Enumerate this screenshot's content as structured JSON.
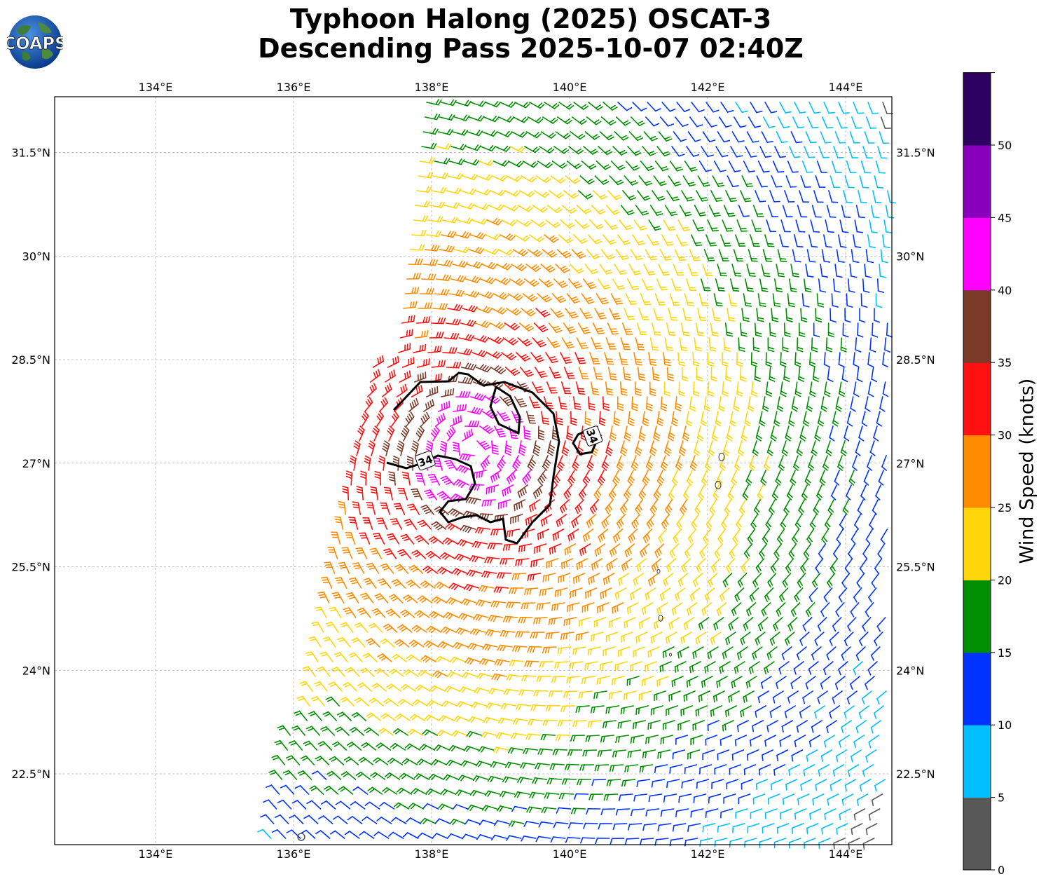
{
  "title_line1": "Typhoon Halong (2025) OSCAT-3",
  "title_line2": "Descending Pass 2025-10-07 02:40Z",
  "logo_text": "COAPS",
  "map": {
    "lon_ticks": [
      "134°E",
      "136°E",
      "138°E",
      "140°E",
      "142°E",
      "144°E"
    ],
    "lat_ticks": [
      "31.5°N",
      "30°N",
      "28.5°N",
      "27°N",
      "25.5°N",
      "24°N",
      "22.5°N"
    ],
    "contour_labels": [
      "34",
      "34"
    ]
  },
  "colorbar": {
    "label": "Wind Speed (knots)",
    "ticks": [
      "0",
      "5",
      "10",
      "15",
      "20",
      "25",
      "30",
      "35",
      "40",
      "45",
      "50"
    ],
    "colors": [
      "#585858",
      "#00bfff",
      "#0033ff",
      "#008f00",
      "#ffd60a",
      "#ff8c00",
      "#ff1010",
      "#7b3a28",
      "#ff00ff",
      "#8800bb",
      "#2b0060"
    ]
  }
}
